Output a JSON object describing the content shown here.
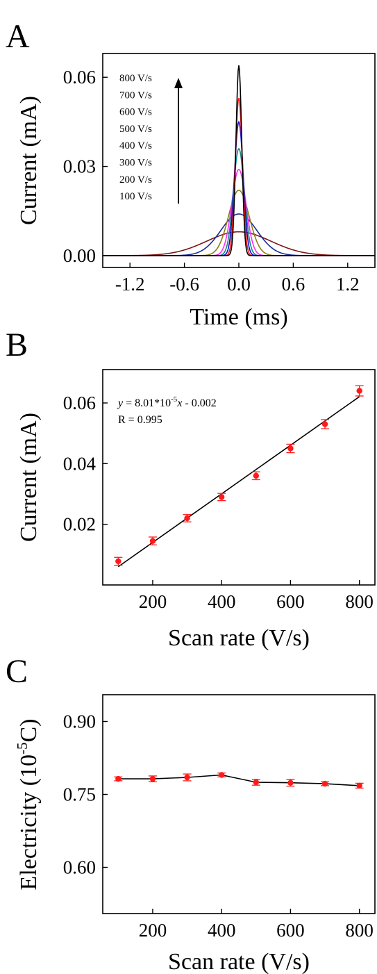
{
  "panels": {
    "A": {
      "letter": "A"
    },
    "B": {
      "letter": "B"
    },
    "C": {
      "letter": "C"
    }
  },
  "chart_data": [
    {
      "id": "A",
      "type": "line",
      "xlabel": "Time (ms)",
      "ylabel": "Current (mA)",
      "xlim": [
        -1.5,
        1.5
      ],
      "ylim": [
        -0.004,
        0.068
      ],
      "xticks": [
        "-1.2",
        "-0.6",
        "0.0",
        "0.6",
        "1.2"
      ],
      "yticks": [
        "0.00",
        "0.03",
        "0.06"
      ],
      "legend": [
        "800 V/s",
        "700 V/s",
        "600 V/s",
        "500 V/s",
        "400 V/s",
        "300 V/s",
        "200 V/s",
        "100 V/s"
      ],
      "arrow": "up",
      "series": [
        {
          "name": "100 V/s",
          "peak": 0.008,
          "width": 0.5,
          "color": "#7b1416"
        },
        {
          "name": "200 V/s",
          "peak": 0.014,
          "width": 0.28,
          "color": "#1b2b93"
        },
        {
          "name": "300 V/s",
          "peak": 0.022,
          "width": 0.16,
          "color": "#8a7f0f"
        },
        {
          "name": "400 V/s",
          "peak": 0.029,
          "width": 0.11,
          "color": "#ff2bff"
        },
        {
          "name": "500 V/s",
          "peak": 0.036,
          "width": 0.085,
          "color": "#15888a"
        },
        {
          "name": "600 V/s",
          "peak": 0.045,
          "width": 0.068,
          "color": "#1010c8"
        },
        {
          "name": "700 V/s",
          "peak": 0.053,
          "width": 0.055,
          "color": "#ff1a1a"
        },
        {
          "name": "800 V/s",
          "peak": 0.064,
          "width": 0.045,
          "color": "#000000"
        }
      ]
    },
    {
      "id": "B",
      "type": "scatter",
      "xlabel": "Scan rate (V/s)",
      "ylabel": "Current (mA)",
      "xlim": [
        55,
        845
      ],
      "ylim": [
        0.0,
        0.071
      ],
      "xticks": [
        "200",
        "400",
        "600",
        "800"
      ],
      "yticks": [
        "0.02",
        "0.04",
        "0.06"
      ],
      "x": [
        100,
        200,
        300,
        400,
        500,
        600,
        700,
        800
      ],
      "y": [
        0.0078,
        0.0145,
        0.022,
        0.029,
        0.036,
        0.045,
        0.053,
        0.064
      ],
      "err": [
        0.0013,
        0.0013,
        0.0012,
        0.0012,
        0.0013,
        0.0014,
        0.0015,
        0.0017
      ],
      "fit": {
        "slope": 8.01e-05,
        "intercept": -0.002
      },
      "equation": {
        "y": "y",
        "mid": " = 8.01*10",
        "exp": "-5",
        "x": "x",
        "end": " - 0.002"
      },
      "r_text": "R = 0.995",
      "marker_color": "#ff1a1a"
    },
    {
      "id": "C",
      "type": "line",
      "xlabel": "Scan rate (V/s)",
      "ylabel": {
        "main": "Electricity (10",
        "exp": "-5",
        "end": "C)"
      },
      "xlim": [
        55,
        845
      ],
      "ylim": [
        0.505,
        0.955
      ],
      "xticks": [
        "200",
        "400",
        "600",
        "800"
      ],
      "yticks": [
        "0.60",
        "0.75",
        "0.90"
      ],
      "x": [
        100,
        200,
        300,
        400,
        500,
        600,
        700,
        800
      ],
      "y": [
        0.782,
        0.782,
        0.785,
        0.79,
        0.775,
        0.774,
        0.772,
        0.768
      ],
      "err": [
        0.004,
        0.006,
        0.007,
        0.004,
        0.006,
        0.007,
        0.004,
        0.005
      ],
      "marker_color": "#ff1a1a"
    }
  ]
}
